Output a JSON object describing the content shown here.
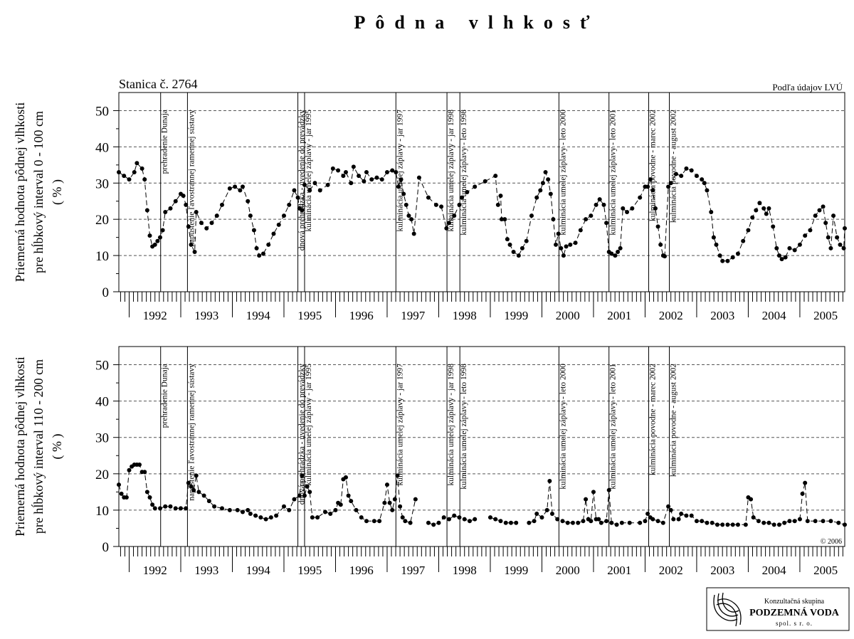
{
  "title": "Pôdna vlhkosť",
  "station": "Stanica č. 2764",
  "source": "Podľa údajov LVÚ",
  "copyright": "© 2006",
  "logo": {
    "line1": "Konzultačná skupina",
    "name": "PODZEMNÁ VODA",
    "line3": "spol. s r. o."
  },
  "events": [
    {
      "x": 1992.61,
      "label": "prehradenie Dunaja"
    },
    {
      "x": 1993.13,
      "label": "napustenie ľavostrannej ramennej sústavy"
    },
    {
      "x": 1995.27,
      "label": "dnová prehrádzka - uvedenie do prevádzky"
    },
    {
      "x": 1995.4,
      "label": "kulminácia umelej záplavy - jar 1995"
    },
    {
      "x": 1997.17,
      "label": "kulminácia umelej záplavy - jar 1997"
    },
    {
      "x": 1998.16,
      "label": "kulminácia umelej záplavy - jar 1998"
    },
    {
      "x": 1998.41,
      "label": "kulminácia umelej záplavy - leto 1998"
    },
    {
      "x": 2000.33,
      "label": "kulminácia umelej záplavy - leto 2000"
    },
    {
      "x": 2001.3,
      "label": "kulminácia umelej záplavy - leto 2001"
    },
    {
      "x": 2002.07,
      "label": "kulminácia povodne - marec 2002"
    },
    {
      "x": 2002.47,
      "label": "kulminácia povodne - august 2002"
    }
  ],
  "chart_data": [
    {
      "type": "line",
      "ylabel": [
        "Priemerná hodnota pôdnej vlhkosti",
        "pre hĺbkový interval 0 - 100 cm",
        "( % )"
      ],
      "color": "#000000",
      "x": [
        1991.8,
        1991.9,
        1992.0,
        1992.1,
        1992.15,
        1992.25,
        1992.3,
        1992.35,
        1992.4,
        1992.45,
        1992.5,
        1992.55,
        1992.6,
        1992.65,
        1992.7,
        1992.8,
        1992.9,
        1993.0,
        1993.05,
        1993.1,
        1993.15,
        1993.2,
        1993.27,
        1993.3,
        1993.4,
        1993.5,
        1993.6,
        1993.7,
        1993.8,
        1993.95,
        1994.05,
        1994.15,
        1994.2,
        1994.3,
        1994.35,
        1994.42,
        1994.47,
        1994.52,
        1994.6,
        1994.7,
        1994.8,
        1994.9,
        1995.0,
        1995.1,
        1995.2,
        1995.27,
        1995.3,
        1995.35,
        1995.4,
        1995.5,
        1995.6,
        1995.7,
        1995.85,
        1995.95,
        1996.05,
        1996.15,
        1996.2,
        1996.3,
        1996.35,
        1996.45,
        1996.55,
        1996.6,
        1996.7,
        1996.8,
        1996.9,
        1997.0,
        1997.1,
        1997.17,
        1997.22,
        1997.27,
        1997.32,
        1997.37,
        1997.42,
        1997.47,
        1997.52,
        1997.62,
        1997.8,
        1997.95,
        1998.05,
        1998.15,
        1998.2,
        1998.3,
        1998.4,
        1998.45,
        1998.55,
        1998.7,
        1998.9,
        1999.1,
        1999.15,
        1999.2,
        1999.22,
        1999.28,
        1999.33,
        1999.38,
        1999.45,
        1999.55,
        1999.62,
        1999.7,
        1999.8,
        1999.9,
        1999.97,
        2000.02,
        2000.07,
        2000.12,
        2000.17,
        2000.22,
        2000.27,
        2000.32,
        2000.37,
        2000.42,
        2000.47,
        2000.55,
        2000.65,
        2000.75,
        2000.85,
        2000.95,
        2001.05,
        2001.12,
        2001.2,
        2001.25,
        2001.3,
        2001.35,
        2001.42,
        2001.47,
        2001.52,
        2001.57,
        2001.65,
        2001.75,
        2001.9,
        2002.0,
        2002.05,
        2002.1,
        2002.15,
        2002.2,
        2002.25,
        2002.3,
        2002.35,
        2002.38,
        2002.45,
        2002.5,
        2002.6,
        2002.7,
        2002.8,
        2002.9,
        2003.0,
        2003.1,
        2003.15,
        2003.2,
        2003.28,
        2003.33,
        2003.38,
        2003.45,
        2003.5,
        2003.6,
        2003.7,
        2003.8,
        2003.9,
        2004.0,
        2004.08,
        2004.15,
        2004.22,
        2004.3,
        2004.35,
        2004.4,
        2004.48,
        2004.55,
        2004.6,
        2004.65,
        2004.72,
        2004.8,
        2004.9,
        2005.0,
        2005.1,
        2005.2,
        2005.3,
        2005.38,
        2005.45,
        2005.5,
        2005.55,
        2005.6,
        2005.65,
        2005.72,
        2005.78,
        2005.85,
        2005.87
      ],
      "values": [
        33,
        32,
        31,
        33,
        35.5,
        34,
        31,
        22.5,
        15.5,
        12.5,
        13,
        14,
        15,
        17,
        22,
        23,
        25,
        27,
        26.5,
        24,
        18,
        13,
        11,
        22,
        19,
        17.5,
        19,
        21,
        24,
        28.5,
        29,
        28,
        29,
        25,
        21,
        17,
        12,
        10,
        10.5,
        13,
        16,
        18.5,
        21,
        24,
        28,
        26,
        23,
        22.5,
        29.5,
        28,
        30,
        28,
        29.5,
        34,
        33.5,
        32,
        33,
        30,
        34.5,
        32,
        30.5,
        33,
        31,
        31.5,
        31,
        33,
        33.5,
        33,
        29,
        31,
        27,
        24,
        21,
        20,
        16,
        31.5,
        26,
        24,
        23.5,
        17.5,
        19,
        21,
        24,
        26,
        27.5,
        29,
        30.5,
        32,
        24,
        26.5,
        20,
        20,
        14.5,
        13,
        11,
        10,
        12,
        14,
        21,
        26,
        28,
        30,
        33,
        31,
        27,
        20,
        13,
        16,
        12,
        10,
        12.5,
        13,
        13.5,
        17,
        20,
        21,
        24,
        25.5,
        24,
        19,
        11,
        10.5,
        10,
        11,
        12,
        23,
        22,
        23,
        26,
        29,
        29,
        31,
        28,
        23,
        18,
        13,
        10,
        9.8,
        29,
        30,
        32.5,
        32,
        34,
        33.5,
        32,
        31,
        30,
        28,
        22,
        15,
        13,
        10,
        8.5,
        8.5,
        9.5,
        10.5,
        14,
        17,
        20.5,
        22.5,
        24.5,
        23,
        21.5,
        23,
        18,
        12,
        10,
        9,
        9.5,
        12,
        11.5,
        13,
        15.5,
        17,
        21,
        22.5,
        23.5,
        19,
        15,
        12,
        21,
        15,
        13,
        12,
        17.5
      ],
      "xlim": [
        1991.8,
        2005.87
      ],
      "xticks": [
        1992,
        1993,
        1994,
        1995,
        1996,
        1997,
        1998,
        1999,
        2000,
        2001,
        2002,
        2003,
        2004,
        2005
      ],
      "ylim": [
        0,
        55
      ],
      "yticks": [
        0,
        10,
        20,
        30,
        40,
        50
      ],
      "grid": true
    },
    {
      "type": "line",
      "ylabel": [
        "Priemerná hodnota pôdnej vlhkosti",
        "pre hĺbkový interval 110 - 200 cm",
        "( % )"
      ],
      "color": "#000000",
      "x": [
        1991.8,
        1991.85,
        1991.9,
        1991.95,
        1992.0,
        1992.05,
        1992.1,
        1992.15,
        1992.2,
        1992.25,
        1992.3,
        1992.35,
        1992.4,
        1992.45,
        1992.5,
        1992.6,
        1992.7,
        1992.8,
        1992.9,
        1993.0,
        1993.1,
        1993.15,
        1993.2,
        1993.25,
        1993.3,
        1993.35,
        1993.45,
        1993.55,
        1993.65,
        1993.8,
        1993.95,
        1994.1,
        1994.2,
        1994.3,
        1994.35,
        1994.45,
        1994.55,
        1994.65,
        1994.75,
        1994.85,
        1995.0,
        1995.1,
        1995.2,
        1995.3,
        1995.35,
        1995.4,
        1995.45,
        1995.5,
        1995.55,
        1995.65,
        1995.8,
        1995.9,
        1996.0,
        1996.05,
        1996.1,
        1996.15,
        1996.2,
        1996.25,
        1996.3,
        1996.4,
        1996.5,
        1996.6,
        1996.75,
        1996.85,
        1996.95,
        1997.0,
        1997.05,
        1997.1,
        1997.15,
        1997.2,
        1997.25,
        1997.3,
        1997.35,
        1997.45,
        1997.55,
        1997.6,
        1997.8,
        1997.9,
        1998.0,
        1998.1,
        1998.2,
        1998.3,
        1998.4,
        1998.5,
        1998.6,
        1998.7,
        1998.85,
        1999.0,
        1999.1,
        1999.2,
        1999.3,
        1999.4,
        1999.5,
        1999.6,
        1999.75,
        1999.85,
        1999.9,
        2000.0,
        2000.1,
        2000.15,
        2000.2,
        2000.3,
        2000.4,
        2000.5,
        2000.6,
        2000.7,
        2000.8,
        2000.85,
        2000.9,
        2000.95,
        2001.0,
        2001.05,
        2001.1,
        2001.15,
        2001.25,
        2001.3,
        2001.35,
        2001.45,
        2001.55,
        2001.7,
        2001.9,
        2002.0,
        2002.05,
        2002.1,
        2002.15,
        2002.25,
        2002.35,
        2002.45,
        2002.5,
        2002.55,
        2002.65,
        2002.7,
        2002.8,
        2002.9,
        2003.0,
        2003.1,
        2003.2,
        2003.3,
        2003.4,
        2003.5,
        2003.6,
        2003.7,
        2003.8,
        2003.95,
        2004.0,
        2004.05,
        2004.1,
        2004.2,
        2004.3,
        2004.4,
        2004.5,
        2004.6,
        2004.7,
        2004.8,
        2004.9,
        2005.0,
        2005.05,
        2005.1,
        2005.15,
        2005.3,
        2005.45,
        2005.6,
        2005.75,
        2005.87
      ],
      "values": [
        17,
        14.5,
        13.5,
        13.5,
        21,
        22,
        22.5,
        22.5,
        22.5,
        20.5,
        20.5,
        15,
        13.5,
        11.5,
        10.5,
        10.5,
        11,
        11,
        10.5,
        10.5,
        10.5,
        17.5,
        16.5,
        15.5,
        19.5,
        15,
        14,
        12.5,
        11,
        10.5,
        10,
        10,
        9.5,
        10,
        9,
        8.5,
        8,
        7.5,
        8,
        8.5,
        11,
        10,
        13,
        14,
        19.5,
        14,
        16.5,
        15,
        8,
        8,
        9.5,
        9,
        10,
        12,
        11.5,
        18.5,
        19,
        14,
        12.5,
        10,
        8,
        7,
        7,
        7,
        12,
        17,
        12,
        10,
        13,
        19.5,
        11,
        8,
        7,
        6.5,
        13,
        null,
        6.5,
        6,
        6.5,
        8,
        7.5,
        8.5,
        8,
        7.5,
        7,
        7.5,
        null,
        8,
        7.5,
        7,
        6.5,
        6.5,
        6.5,
        null,
        6.5,
        7,
        9,
        8,
        10,
        18,
        9,
        7.5,
        7,
        6.5,
        6.5,
        6.5,
        7,
        13,
        7.5,
        7,
        15,
        7.5,
        7.5,
        6.5,
        7,
        15.5,
        6.5,
        6,
        6.5,
        6.5,
        6.5,
        7,
        9,
        8,
        7.5,
        7,
        6.5,
        11,
        10,
        7.5,
        7.5,
        9,
        8.5,
        8.5,
        7,
        7,
        6.5,
        6.5,
        6,
        6,
        6,
        6,
        6,
        6,
        13.5,
        13,
        8,
        7,
        6.5,
        6.5,
        6,
        6,
        6.5,
        7,
        7,
        7.5,
        14.5,
        17.5,
        7,
        7,
        7,
        7,
        6.5,
        6
      ],
      "xlim": [
        1991.8,
        2005.87
      ],
      "xticks": [
        1992,
        1993,
        1994,
        1995,
        1996,
        1997,
        1998,
        1999,
        2000,
        2001,
        2002,
        2003,
        2004,
        2005
      ],
      "ylim": [
        0,
        55
      ],
      "yticks": [
        0,
        10,
        20,
        30,
        40,
        50
      ],
      "grid": true
    }
  ]
}
